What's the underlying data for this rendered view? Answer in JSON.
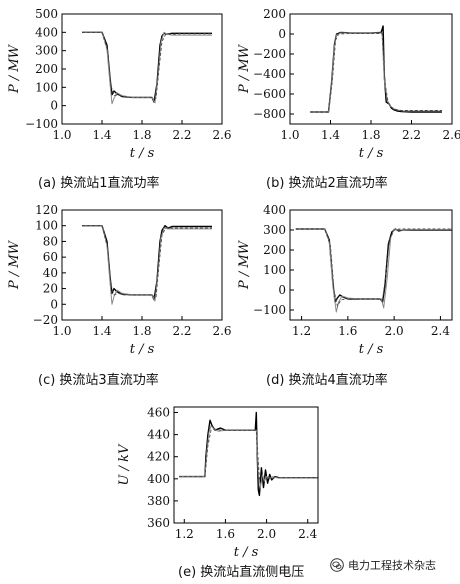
{
  "chart_data": [
    {
      "type": "line",
      "caption": "(a) 换流站1直流功率",
      "xlabel": "t / s",
      "ylabel": "P / MW",
      "xlim": [
        1.0,
        2.6
      ],
      "ylim": [
        -100,
        500
      ],
      "xticks": [
        "1.0",
        "1.4",
        "1.8",
        "2.2",
        "2.6"
      ],
      "yticks": [
        "500",
        "400",
        "300",
        "200",
        "100",
        "0",
        "−100"
      ],
      "xtick_values": [
        1.0,
        1.4,
        1.8,
        2.2,
        2.6
      ],
      "ytick_values": [
        500,
        400,
        300,
        200,
        100,
        0,
        -100
      ],
      "series": [
        {
          "x": [
            1.2,
            1.4,
            1.45,
            1.48,
            1.5,
            1.52,
            1.55,
            1.6,
            1.7,
            1.8,
            1.9,
            1.92,
            1.95,
            1.98,
            2.0,
            2.02,
            2.05,
            2.1,
            2.2,
            2.5
          ],
          "y": [
            400,
            400,
            330,
            150,
            60,
            80,
            65,
            50,
            45,
            45,
            45,
            20,
            120,
            330,
            380,
            395,
            390,
            395,
            395,
            395
          ]
        },
        {
          "x": [
            1.2,
            1.4,
            1.45,
            1.48,
            1.5,
            1.52,
            1.55,
            1.6,
            1.7,
            1.8,
            1.9,
            1.93,
            1.96,
            1.99,
            2.02,
            2.05,
            2.1,
            2.2,
            2.5
          ],
          "y": [
            400,
            400,
            310,
            120,
            10,
            40,
            70,
            55,
            45,
            45,
            45,
            15,
            160,
            345,
            400,
            390,
            385,
            385,
            385
          ]
        },
        {
          "x": [
            1.2,
            1.4,
            1.46,
            1.49,
            1.52,
            1.56,
            1.62,
            1.7,
            1.8,
            1.9,
            1.94,
            1.97,
            2.0,
            2.04,
            2.1,
            2.2,
            2.5
          ],
          "y": [
            400,
            400,
            290,
            110,
            55,
            60,
            50,
            45,
            45,
            45,
            40,
            200,
            350,
            392,
            390,
            392,
            392
          ]
        }
      ]
    },
    {
      "type": "line",
      "caption": "(b) 换流站2直流功率",
      "xlabel": "t / s",
      "ylabel": "P / MW",
      "xlim": [
        1.0,
        2.6
      ],
      "ylim": [
        -900,
        200
      ],
      "xticks": [
        "1.0",
        "1.4",
        "1.8",
        "2.2",
        "2.6"
      ],
      "yticks": [
        "200",
        "0",
        "−200",
        "−400",
        "−600",
        "−800"
      ],
      "xtick_values": [
        1.0,
        1.4,
        1.8,
        2.2,
        2.6
      ],
      "ytick_values": [
        200,
        0,
        -200,
        -400,
        -600,
        -800
      ],
      "series": [
        {
          "x": [
            1.2,
            1.38,
            1.41,
            1.44,
            1.46,
            1.5,
            1.6,
            1.8,
            1.9,
            1.92,
            1.93,
            1.95,
            1.98,
            2.0,
            2.03,
            2.06,
            2.1,
            2.2,
            2.5
          ],
          "y": [
            -780,
            -780,
            -500,
            -100,
            0,
            15,
            10,
            10,
            15,
            80,
            -400,
            -680,
            -700,
            -740,
            -760,
            -770,
            -775,
            -780,
            -780
          ]
        },
        {
          "x": [
            1.2,
            1.38,
            1.41,
            1.44,
            1.46,
            1.5,
            1.6,
            1.8,
            1.91,
            1.93,
            1.96,
            1.99,
            2.02,
            2.06,
            2.12,
            2.2,
            2.5
          ],
          "y": [
            -780,
            -780,
            -520,
            -120,
            -10,
            10,
            10,
            10,
            10,
            -450,
            -660,
            -720,
            -745,
            -760,
            -770,
            -770,
            -770
          ]
        },
        {
          "x": [
            1.2,
            1.38,
            1.42,
            1.45,
            1.48,
            1.6,
            1.8,
            1.91,
            1.94,
            1.97,
            2.0,
            2.04,
            2.1,
            2.2,
            2.5
          ],
          "y": [
            -780,
            -780,
            -450,
            -60,
            0,
            5,
            5,
            5,
            -500,
            -690,
            -730,
            -755,
            -765,
            -765,
            -765
          ]
        }
      ]
    },
    {
      "type": "line",
      "caption": "(c) 换流站3直流功率",
      "xlabel": "t / s",
      "ylabel": "P / MW",
      "xlim": [
        1.0,
        2.6
      ],
      "ylim": [
        -20,
        120
      ],
      "xticks": [
        "1.0",
        "1.4",
        "1.8",
        "2.2",
        "2.6"
      ],
      "yticks": [
        "120",
        "100",
        "80",
        "60",
        "40",
        "20",
        "0",
        "−20"
      ],
      "xtick_values": [
        1.0,
        1.4,
        1.8,
        2.2,
        2.6
      ],
      "ytick_values": [
        120,
        100,
        80,
        60,
        40,
        20,
        0,
        -20
      ],
      "series": [
        {
          "x": [
            1.2,
            1.4,
            1.45,
            1.48,
            1.5,
            1.52,
            1.55,
            1.6,
            1.7,
            1.8,
            1.9,
            1.92,
            1.95,
            1.98,
            2.0,
            2.03,
            2.06,
            2.1,
            2.2,
            2.5
          ],
          "y": [
            100,
            100,
            80,
            35,
            14,
            20,
            16,
            13,
            12,
            12,
            12,
            6,
            30,
            80,
            94,
            100,
            97,
            99,
            99,
            99
          ]
        },
        {
          "x": [
            1.2,
            1.4,
            1.45,
            1.48,
            1.5,
            1.52,
            1.55,
            1.6,
            1.7,
            1.8,
            1.9,
            1.93,
            1.96,
            1.99,
            2.02,
            2.06,
            2.12,
            2.2,
            2.5
          ],
          "y": [
            100,
            100,
            75,
            28,
            0,
            10,
            18,
            14,
            12,
            12,
            12,
            4,
            40,
            85,
            97,
            96,
            96,
            96,
            96
          ]
        },
        {
          "x": [
            1.2,
            1.4,
            1.46,
            1.49,
            1.52,
            1.56,
            1.62,
            1.7,
            1.8,
            1.9,
            1.94,
            1.97,
            2.0,
            2.04,
            2.1,
            2.2,
            2.5
          ],
          "y": [
            100,
            100,
            70,
            25,
            12,
            14,
            12,
            12,
            12,
            12,
            8,
            50,
            88,
            98,
            97,
            97,
            97
          ]
        }
      ]
    },
    {
      "type": "line",
      "caption": "(d) 换流站4直流功率",
      "xlabel": "t / s",
      "ylabel": "P / MW",
      "xlim": [
        1.1,
        2.5
      ],
      "ylim": [
        -150,
        400
      ],
      "xticks": [
        "1.2",
        "1.6",
        "2.0",
        "2.4"
      ],
      "yticks": [
        "400",
        "300",
        "200",
        "100",
        "0",
        "−100"
      ],
      "xtick_values": [
        1.2,
        1.6,
        2.0,
        2.4
      ],
      "ytick_values": [
        400,
        300,
        200,
        100,
        0,
        -100
      ],
      "series": [
        {
          "x": [
            1.15,
            1.4,
            1.44,
            1.47,
            1.49,
            1.51,
            1.53,
            1.56,
            1.6,
            1.7,
            1.8,
            1.88,
            1.9,
            1.92,
            1.95,
            1.98,
            2.01,
            2.04,
            2.08,
            2.15,
            2.5
          ],
          "y": [
            305,
            305,
            250,
            40,
            -60,
            -40,
            -25,
            -35,
            -45,
            -45,
            -45,
            -45,
            -60,
            20,
            230,
            290,
            305,
            295,
            300,
            300,
            300
          ]
        },
        {
          "x": [
            1.15,
            1.4,
            1.44,
            1.47,
            1.5,
            1.52,
            1.55,
            1.6,
            1.7,
            1.8,
            1.89,
            1.91,
            1.94,
            1.97,
            2.0,
            2.03,
            2.07,
            2.15,
            2.5
          ],
          "y": [
            305,
            305,
            240,
            20,
            -110,
            -60,
            -30,
            -40,
            -45,
            -45,
            -45,
            -90,
            60,
            260,
            305,
            300,
            300,
            302,
            302
          ]
        },
        {
          "x": [
            1.15,
            1.4,
            1.45,
            1.48,
            1.51,
            1.54,
            1.58,
            1.7,
            1.8,
            1.9,
            1.93,
            1.96,
            2.0,
            2.05,
            2.15,
            2.5
          ],
          "y": [
            305,
            305,
            220,
            0,
            -80,
            -50,
            -45,
            -45,
            -45,
            -45,
            80,
            250,
            300,
            305,
            305,
            305
          ]
        }
      ]
    },
    {
      "type": "line",
      "caption": "(e) 换流站直流侧电压",
      "xlabel": "t / s",
      "ylabel": "U / kV",
      "xlim": [
        1.1,
        2.5
      ],
      "ylim": [
        360,
        465
      ],
      "xticks": [
        "1.2",
        "1.6",
        "2.0",
        "2.4"
      ],
      "yticks": [
        "460",
        "440",
        "420",
        "400",
        "380",
        "360"
      ],
      "xtick_values": [
        1.2,
        1.6,
        2.0,
        2.4
      ],
      "ytick_values": [
        460,
        440,
        420,
        400,
        380,
        360
      ],
      "series": [
        {
          "x": [
            1.15,
            1.4,
            1.41,
            1.43,
            1.45,
            1.47,
            1.5,
            1.55,
            1.6,
            1.7,
            1.8,
            1.89,
            1.9,
            1.91,
            1.92,
            1.93,
            1.95,
            1.97,
            1.99,
            2.01,
            2.03,
            2.05,
            2.08,
            2.12,
            2.2,
            2.5
          ],
          "y": [
            402,
            402,
            420,
            440,
            453,
            448,
            444,
            446,
            444,
            444,
            444,
            444,
            460,
            420,
            390,
            385,
            410,
            392,
            408,
            396,
            404,
            399,
            402,
            401,
            401,
            401
          ]
        },
        {
          "x": [
            1.15,
            1.4,
            1.42,
            1.44,
            1.46,
            1.49,
            1.53,
            1.6,
            1.7,
            1.8,
            1.9,
            1.92,
            1.94,
            1.96,
            1.98,
            2.0,
            2.03,
            2.06,
            2.1,
            2.2,
            2.5
          ],
          "y": [
            402,
            402,
            425,
            442,
            448,
            445,
            443,
            444,
            444,
            444,
            444,
            405,
            392,
            404,
            398,
            402,
            400,
            402,
            401,
            401,
            401
          ]
        },
        {
          "x": [
            1.15,
            1.4,
            1.43,
            1.46,
            1.5,
            1.56,
            1.62,
            1.7,
            1.8,
            1.9,
            1.93,
            1.96,
            1.99,
            2.03,
            2.08,
            2.2,
            2.5
          ],
          "y": [
            402,
            402,
            430,
            444,
            445,
            444,
            444,
            444,
            444,
            444,
            400,
            397,
            402,
            400,
            401,
            401,
            401
          ]
        }
      ]
    }
  ],
  "watermark": {
    "text": "电力工程技术杂志",
    "icon": "wechat-icon"
  }
}
